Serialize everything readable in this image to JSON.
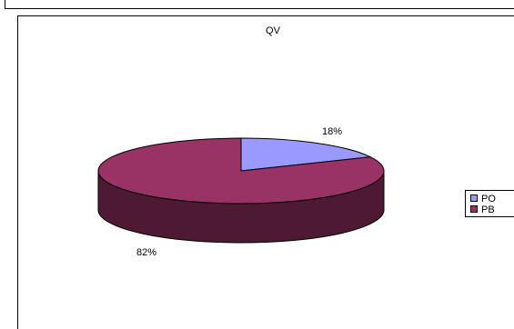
{
  "chart_data": {
    "type": "pie",
    "title": "QV",
    "categories": [
      "PO",
      "PB"
    ],
    "values": [
      18,
      82
    ],
    "labels": [
      "18%",
      "82%"
    ],
    "colors": {
      "PO": "#9999ff",
      "PB": "#993366",
      "PB_side": "#4d1933",
      "PO_side": "#4d4d80"
    },
    "three_d": true,
    "legend": "right",
    "legend_entries": [
      {
        "name": "PO",
        "color": "#9999ff"
      },
      {
        "name": "PB",
        "color": "#993366"
      }
    ]
  }
}
